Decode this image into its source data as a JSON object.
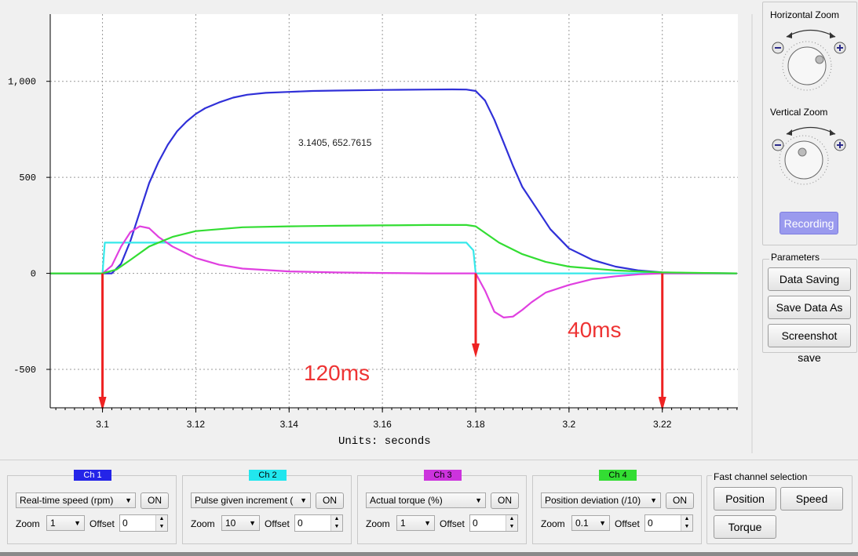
{
  "chart_data": {
    "type": "line",
    "xlabel": "Units: seconds",
    "x_ticks": [
      "3.1",
      "3.12",
      "3.14",
      "3.16",
      "3.18",
      "3.2",
      "3.22"
    ],
    "y_ticks": [
      "1,000",
      "500",
      "0",
      "-500"
    ],
    "xlim": [
      3.0888,
      3.2362
    ],
    "ylim": [
      -700,
      1350
    ],
    "grid": true,
    "cursor_readout": "3.1405, 652.7615",
    "series": [
      {
        "color": "#3030d8",
        "x": [
          3.0888,
          3.1,
          3.102,
          3.104,
          3.106,
          3.108,
          3.11,
          3.112,
          3.114,
          3.116,
          3.118,
          3.12,
          3.122,
          3.125,
          3.128,
          3.131,
          3.135,
          3.14,
          3.145,
          3.15,
          3.16,
          3.17,
          3.175,
          3.178,
          3.18,
          3.182,
          3.184,
          3.186,
          3.188,
          3.19,
          3.193,
          3.196,
          3.2,
          3.205,
          3.21,
          3.215,
          3.22,
          3.225,
          3.236
        ],
        "y": [
          0,
          0,
          0,
          50,
          170,
          320,
          470,
          580,
          670,
          740,
          790,
          830,
          860,
          890,
          915,
          930,
          940,
          945,
          950,
          952,
          955,
          957,
          958,
          957,
          950,
          900,
          800,
          680,
          560,
          450,
          340,
          230,
          130,
          70,
          35,
          15,
          5,
          2,
          0
        ]
      },
      {
        "color": "#36e8ea",
        "x": [
          3.0888,
          3.1,
          3.1005,
          3.11,
          3.12,
          3.13,
          3.14,
          3.15,
          3.16,
          3.17,
          3.178,
          3.1795,
          3.18,
          3.236
        ],
        "y": [
          0,
          0,
          160,
          160,
          160,
          160,
          160,
          160,
          160,
          160,
          160,
          120,
          0,
          0
        ]
      },
      {
        "color": "#e040e0",
        "x": [
          3.0888,
          3.1,
          3.102,
          3.104,
          3.106,
          3.108,
          3.11,
          3.112,
          3.115,
          3.12,
          3.125,
          3.13,
          3.14,
          3.15,
          3.16,
          3.17,
          3.175,
          3.18,
          3.182,
          3.184,
          3.186,
          3.188,
          3.19,
          3.192,
          3.195,
          3.2,
          3.205,
          3.21,
          3.215,
          3.22,
          3.225,
          3.236
        ],
        "y": [
          0,
          0,
          40,
          140,
          215,
          245,
          235,
          190,
          140,
          80,
          45,
          25,
          10,
          5,
          2,
          0,
          0,
          0,
          -90,
          -200,
          -230,
          -225,
          -190,
          -150,
          -100,
          -60,
          -30,
          -15,
          -5,
          0,
          0,
          0
        ]
      },
      {
        "color": "#33dd33",
        "x": [
          3.0888,
          3.1,
          3.103,
          3.106,
          3.11,
          3.115,
          3.12,
          3.13,
          3.14,
          3.15,
          3.16,
          3.17,
          3.178,
          3.18,
          3.185,
          3.19,
          3.195,
          3.2,
          3.21,
          3.22,
          3.236
        ],
        "y": [
          0,
          0,
          20,
          70,
          140,
          190,
          220,
          240,
          245,
          248,
          250,
          252,
          252,
          245,
          160,
          100,
          60,
          35,
          15,
          5,
          0
        ]
      }
    ],
    "annotations": [
      "120ms",
      "40ms"
    ]
  },
  "zoom": {
    "horizontal_label": "Horizontal Zoom",
    "vertical_label": "Vertical Zoom",
    "minus": "−",
    "plus": "+"
  },
  "recording_label": "Recording",
  "parameters": {
    "title": "Parameters",
    "data_saving": "Data Saving",
    "save_data_as": "Save Data As",
    "screenshot_save": "Screenshot save"
  },
  "channels": [
    {
      "tag": "Ch 1",
      "tag_color": "#2424e8",
      "tag_text_color": "#ffffff",
      "combo": "Real-time speed (rpm)",
      "on": "ON",
      "zoom_label": "Zoom",
      "zoom": "1",
      "offset_label": "Offset",
      "offset": "0"
    },
    {
      "tag": "Ch 2",
      "tag_color": "#22e6ee",
      "tag_text_color": "#000000",
      "combo": "Pulse given increment (",
      "on": "ON",
      "zoom_label": "Zoom",
      "zoom": "10",
      "offset_label": "Offset",
      "offset": "0"
    },
    {
      "tag": "Ch 3",
      "tag_color": "#cc33dd",
      "tag_text_color": "#000000",
      "combo": "Actual torque (%)",
      "on": "ON",
      "zoom_label": "Zoom",
      "zoom": "1",
      "offset_label": "Offset",
      "offset": "0"
    },
    {
      "tag": "Ch 4",
      "tag_color": "#33dd33",
      "tag_text_color": "#000000",
      "combo": "Position deviation (/10)",
      "on": "ON",
      "zoom_label": "Zoom",
      "zoom": "0.1",
      "offset_label": "Offset",
      "offset": "0"
    }
  ],
  "fast_channel": {
    "title": "Fast channel selection",
    "position": "Position",
    "speed": "Speed",
    "torque": "Torque"
  },
  "colors": {
    "annotation": "#ee3333",
    "arrow": "#ee2222"
  }
}
